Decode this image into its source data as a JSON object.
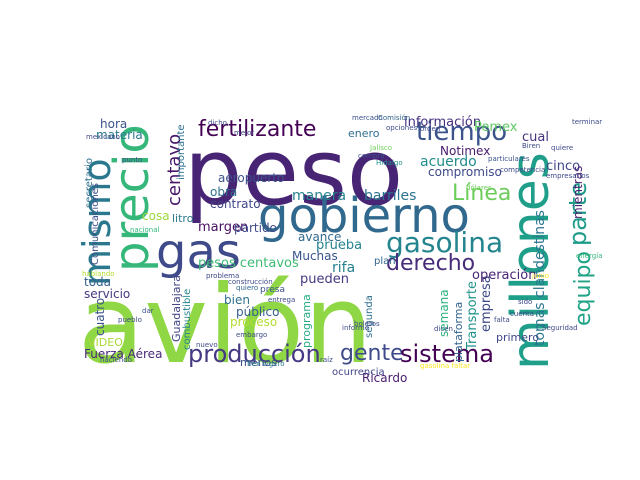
{
  "cloud": {
    "background": "#ffffff",
    "palette": [
      "#440154",
      "#46327e",
      "#365c8d",
      "#277f8e",
      "#1fa187",
      "#4ac16d",
      "#a0da39",
      "#fde725"
    ],
    "words": [
      {
        "text": "avión",
        "color": "#8fd744"
      },
      {
        "text": "peso",
        "color": "#482475"
      },
      {
        "text": "millones",
        "color": "#1f9e89"
      },
      {
        "text": "gobierno",
        "color": "#31688e"
      },
      {
        "text": "gas",
        "color": "#3e4a89"
      },
      {
        "text": "precio",
        "color": "#35b779"
      },
      {
        "text": "mismo",
        "color": "#2a788e"
      },
      {
        "text": "gasolina",
        "color": "#25858e"
      },
      {
        "text": "tiempo",
        "color": "#3b528b"
      },
      {
        "text": "fertilizante",
        "color": "#440154"
      },
      {
        "text": "producción",
        "color": "#443983"
      },
      {
        "text": "gente",
        "color": "#3e4a89"
      },
      {
        "text": "sistema",
        "color": "#440154"
      },
      {
        "text": "derecho",
        "color": "#472c7a"
      },
      {
        "text": "Línea",
        "color": "#6ccd5a"
      },
      {
        "text": "parte",
        "color": "#1e9c89"
      },
      {
        "text": "equipo",
        "color": "#20a386"
      },
      {
        "text": "centavo",
        "color": "#481769"
      },
      {
        "text": "margen",
        "color": "#471063"
      },
      {
        "text": "aeropuerto",
        "color": "#3b528b"
      },
      {
        "text": "manera",
        "color": "#26828e"
      },
      {
        "text": "barriles",
        "color": "#2c728e"
      },
      {
        "text": "acuerdo",
        "color": "#228c8d"
      },
      {
        "text": "información",
        "color": "#46307e"
      },
      {
        "text": "compromiso",
        "color": "#3e4989"
      },
      {
        "text": "Notimex",
        "color": "#481a6c"
      },
      {
        "text": "Pemex",
        "color": "#5ec962"
      },
      {
        "text": "cual",
        "color": "#46337f"
      },
      {
        "text": "cinco",
        "color": "#404688"
      },
      {
        "text": "mientras",
        "color": "#482071"
      },
      {
        "text": "tomas clandestinas",
        "color": "#2a768e"
      },
      {
        "text": "Transporte",
        "color": "#20928c"
      },
      {
        "text": "empresa",
        "color": "#3e4a89"
      },
      {
        "text": "operación",
        "color": "#482576"
      },
      {
        "text": "plataforma",
        "color": "#33638d"
      },
      {
        "text": "semana",
        "color": "#2ab07f"
      },
      {
        "text": "segunda",
        "color": "#2e6e8e"
      },
      {
        "text": "primero",
        "color": "#3f4889"
      },
      {
        "text": "pesos centavos",
        "color": "#3dbc74"
      },
      {
        "text": "rifa",
        "color": "#27808e"
      },
      {
        "text": "prueba",
        "color": "#25838e"
      },
      {
        "text": "Muchas",
        "color": "#3a538b"
      },
      {
        "text": "pueden",
        "color": "#443a83"
      },
      {
        "text": "avance",
        "color": "#30698e"
      },
      {
        "text": "bien",
        "color": "#2d718e"
      },
      {
        "text": "público",
        "color": "#355f8d"
      },
      {
        "text": "programa",
        "color": "#25ab82"
      },
      {
        "text": "proceso",
        "color": "#b2dd2d"
      },
      {
        "text": "partido",
        "color": "#3e4a89"
      },
      {
        "text": "contrato",
        "color": "#3f4788"
      },
      {
        "text": "obra",
        "color": "#2c728e"
      },
      {
        "text": "litro",
        "color": "#2a778e"
      },
      {
        "text": "cosa",
        "color": "#9bd93c"
      },
      {
        "text": "importante",
        "color": "#2c718e"
      },
      {
        "text": "hora",
        "color": "#3b528b"
      },
      {
        "text": "materia",
        "color": "#2a788e"
      },
      {
        "text": "secretario",
        "color": "#2e6f8e"
      },
      {
        "text": "Comunicaciones",
        "color": "#3d4d8a"
      },
      {
        "text": "toda",
        "color": "#34618d"
      },
      {
        "text": "servicio",
        "color": "#453781"
      },
      {
        "text": "cuatro",
        "color": "#3b528b"
      },
      {
        "text": "Guadalajara",
        "color": "#414487"
      },
      {
        "text": "combustible",
        "color": "#25858e"
      },
      {
        "text": "VIDEO",
        "color": "#a8db34"
      },
      {
        "text": "Fuerza Aérea",
        "color": "#482878"
      },
      {
        "text": "menos",
        "color": "#3b528b"
      },
      {
        "text": "Ricardo",
        "color": "#481b6d"
      },
      {
        "text": "enero",
        "color": "#2e6e8e"
      },
      {
        "text": "plan",
        "color": "#33638d"
      },
      {
        "text": "presa",
        "color": "#3b528b"
      },
      {
        "text": "ocurrencia",
        "color": "#414487"
      },
      {
        "text": "mercado",
        "color": "#3b528b"
      },
      {
        "text": "Comisión",
        "color": "#33638d"
      },
      {
        "text": "Tren Ligero",
        "color": "#2a788e"
      },
      {
        "text": "Hidalgo",
        "color": "#21918c"
      },
      {
        "text": "problema",
        "color": "#3e4a89"
      },
      {
        "text": "construcción",
        "color": "#3e4a89"
      },
      {
        "text": "quiero",
        "color": "#31688e"
      },
      {
        "text": "embargo",
        "color": "#3e4a89"
      },
      {
        "text": "nacional",
        "color": "#35b779"
      },
      {
        "text": "boletos",
        "color": "#3e4a89"
      },
      {
        "text": "dólares",
        "color": "#6ece58"
      },
      {
        "text": "particulares",
        "color": "#3b528b"
      },
      {
        "text": "compra",
        "color": "#3b528b"
      },
      {
        "text": "Jalisco",
        "color": "#6ece58"
      },
      {
        "text": "junio",
        "color": "#fde725"
      },
      {
        "text": "energía",
        "color": "#35b779"
      },
      {
        "text": "Seguridad",
        "color": "#3e4a89"
      },
      {
        "text": "Biren",
        "color": "#3e4a89"
      },
      {
        "text": "dar",
        "color": "#3b528b"
      },
      {
        "text": "pueblo",
        "color": "#3e4a89"
      },
      {
        "text": "haciendo",
        "color": "#3e4a89"
      },
      {
        "text": "dicen",
        "color": "#3e4a89"
      },
      {
        "text": "cuenta",
        "color": "#3e4a89"
      },
      {
        "text": "falta",
        "color": "#3e4a89"
      },
      {
        "text": "gasolina faltar",
        "color": "#fde725"
      },
      {
        "text": "punto",
        "color": "#3e4a89"
      },
      {
        "text": "raíz",
        "color": "#3e4a89"
      },
      {
        "text": "informe",
        "color": "#3e4a89"
      },
      {
        "text": "competencia",
        "color": "#3e4a89"
      },
      {
        "text": "terminar",
        "color": "#3e4a89"
      },
      {
        "text": "empresarios",
        "color": "#3e4a89"
      },
      {
        "text": "quiere",
        "color": "#3e4a89"
      },
      {
        "text": "sido",
        "color": "#3e4a89"
      },
      {
        "text": "orden",
        "color": "#3e4a89"
      },
      {
        "text": "opciones",
        "color": "#3e4a89"
      },
      {
        "text": "hablando",
        "color": "#b5de2b"
      },
      {
        "text": "mexicano",
        "color": "#3e4a89"
      },
      {
        "text": "dicho",
        "color": "#3e4a89"
      },
      {
        "text": "mejor",
        "color": "#3e4a89"
      },
      {
        "text": "entrega",
        "color": "#3e4a89"
      },
      {
        "text": "nuevo",
        "color": "#3e4a89"
      }
    ]
  }
}
